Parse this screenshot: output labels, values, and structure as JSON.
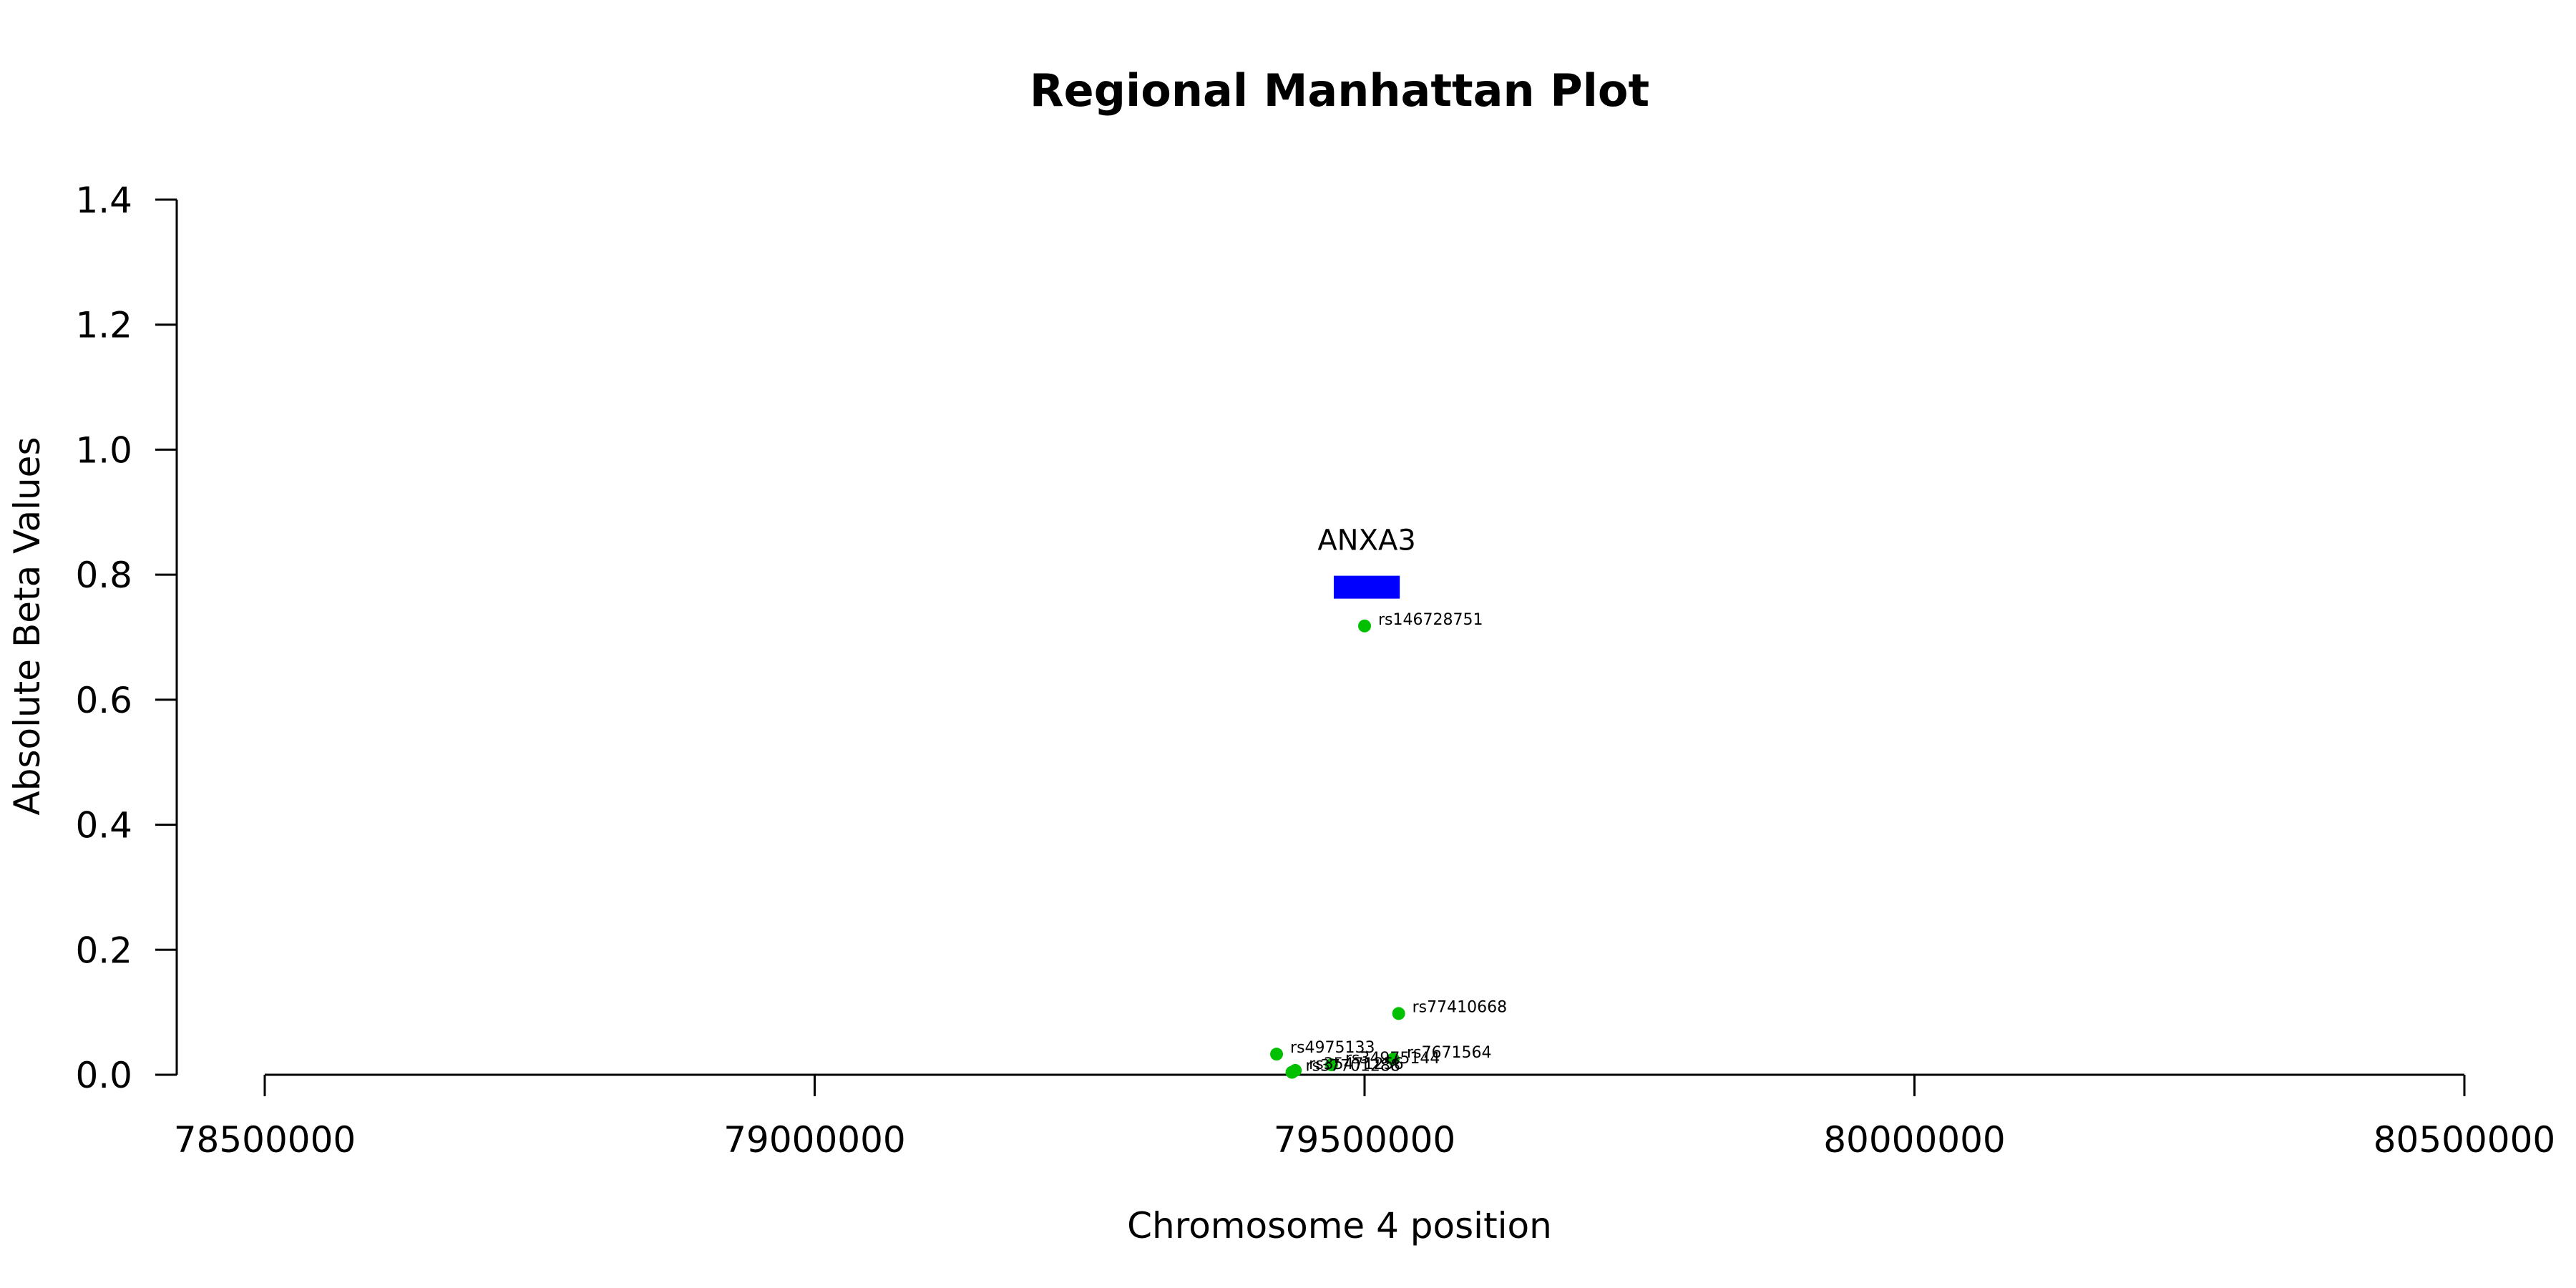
{
  "chart_data": {
    "type": "scatter",
    "title": "Regional Manhattan Plot",
    "xlabel": "Chromosome 4 position",
    "ylabel": "Absolute Beta Values",
    "xlim": [
      78500000,
      80500000
    ],
    "ylim": [
      0,
      1.4
    ],
    "x_ticks": [
      78500000,
      79000000,
      79500000,
      80000000,
      80500000
    ],
    "x_tick_labels": [
      "78500000",
      "79000000",
      "79500000",
      "80000000",
      "80500000"
    ],
    "y_ticks": [
      0,
      0.2,
      0.4,
      0.6,
      0.8,
      1.0,
      1.2,
      1.4
    ],
    "y_tick_labels": [
      "0.0",
      "0.2",
      "0.4",
      "0.6",
      "0.8",
      "1.0",
      "1.2",
      "1.4"
    ],
    "grid": false,
    "point_color": "#00c000",
    "gene_color": "#0000ff",
    "genes": [
      {
        "name": "ANXA3",
        "start": 79472000,
        "end": 79532000,
        "y": 0.78
      }
    ],
    "points": [
      {
        "label": "rs146728751",
        "x": 79500000,
        "y": 0.718
      },
      {
        "label": "rs77410668",
        "x": 79531000,
        "y": 0.098
      },
      {
        "label": "rs4975133",
        "x": 79420000,
        "y": 0.033
      },
      {
        "label": "rs7671564",
        "x": 79526000,
        "y": 0.025
      },
      {
        "label": "rs34975144",
        "x": 79470000,
        "y": 0.016
      },
      {
        "label": "rs35471256",
        "x": 79437000,
        "y": 0.007
      },
      {
        "label": "rs37701288",
        "x": 79434000,
        "y": 0.004
      }
    ]
  }
}
